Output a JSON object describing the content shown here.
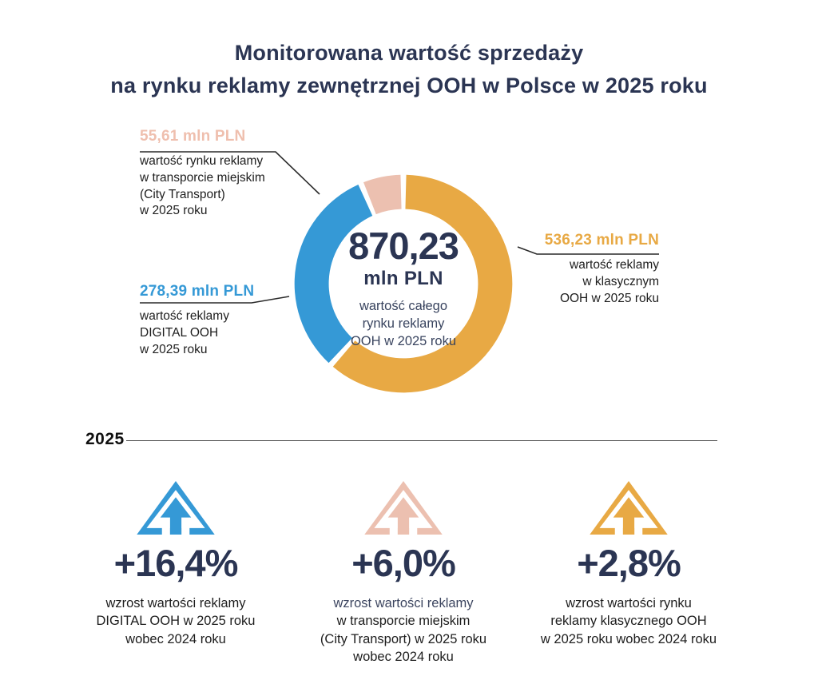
{
  "title": {
    "line1": "Monitorowana wartość sprzedaży",
    "line2": "na rynku reklamy zewnętrznej OOH w Polsce w 2025 roku"
  },
  "colors": {
    "navy": "#2b3553",
    "blue": "#3599d6",
    "pink": "#ecc0b0",
    "pink_label": "#efbfae",
    "orange": "#e8a944",
    "line": "#2a2a2a"
  },
  "chart_data": {
    "type": "pie",
    "subtype": "donut",
    "unit": "mln PLN",
    "start_angle_deg": 0,
    "direction": "clockwise",
    "gap_deg": 3,
    "total": {
      "value": "870,23",
      "unit": "mln PLN",
      "caption_lines": [
        "wartość całego",
        "rynku reklamy",
        "OOH w 2025 roku"
      ]
    },
    "segments": [
      {
        "name": "klasyczny OOH",
        "value": 536.23,
        "display": "536,23 mln PLN",
        "color": "#e8a944",
        "label_lines": [
          "wartość reklamy",
          "w klasycznym",
          "OOH w 2025 roku"
        ]
      },
      {
        "name": "DIGITAL OOH",
        "value": 278.39,
        "display": "278,39 mln PLN",
        "color": "#3599d6",
        "label_lines": [
          "wartość reklamy",
          "DIGITAL OOH",
          "w 2025 roku"
        ]
      },
      {
        "name": "City Transport",
        "value": 55.61,
        "display": "55,61 mln PLN",
        "color": "#ecc0b0",
        "label_lines": [
          "wartość rynku reklamy",
          "w transporcie miejskim",
          "(City Transport)",
          "w 2025 roku"
        ]
      }
    ]
  },
  "divider": {
    "year": "2025"
  },
  "growth": {
    "items": [
      {
        "value": "+16,4%",
        "color": "#3599d6",
        "caption_lines": [
          "wzrost wartości reklamy",
          "DIGITAL OOH w 2025 roku",
          "wobec 2024 roku"
        ]
      },
      {
        "value": "+6,0%",
        "color": "#ecc0b0",
        "caption_lines": [
          "wzrost wartości reklamy",
          "w transporcie miejskim",
          "(City Transport) w 2025 roku",
          "wobec 2024 roku"
        ]
      },
      {
        "value": "+2,8%",
        "color": "#e8a944",
        "caption_lines": [
          "wzrost wartości rynku",
          "reklamy klasycznego OOH",
          "w 2025 roku wobec 2024 roku"
        ]
      }
    ]
  }
}
